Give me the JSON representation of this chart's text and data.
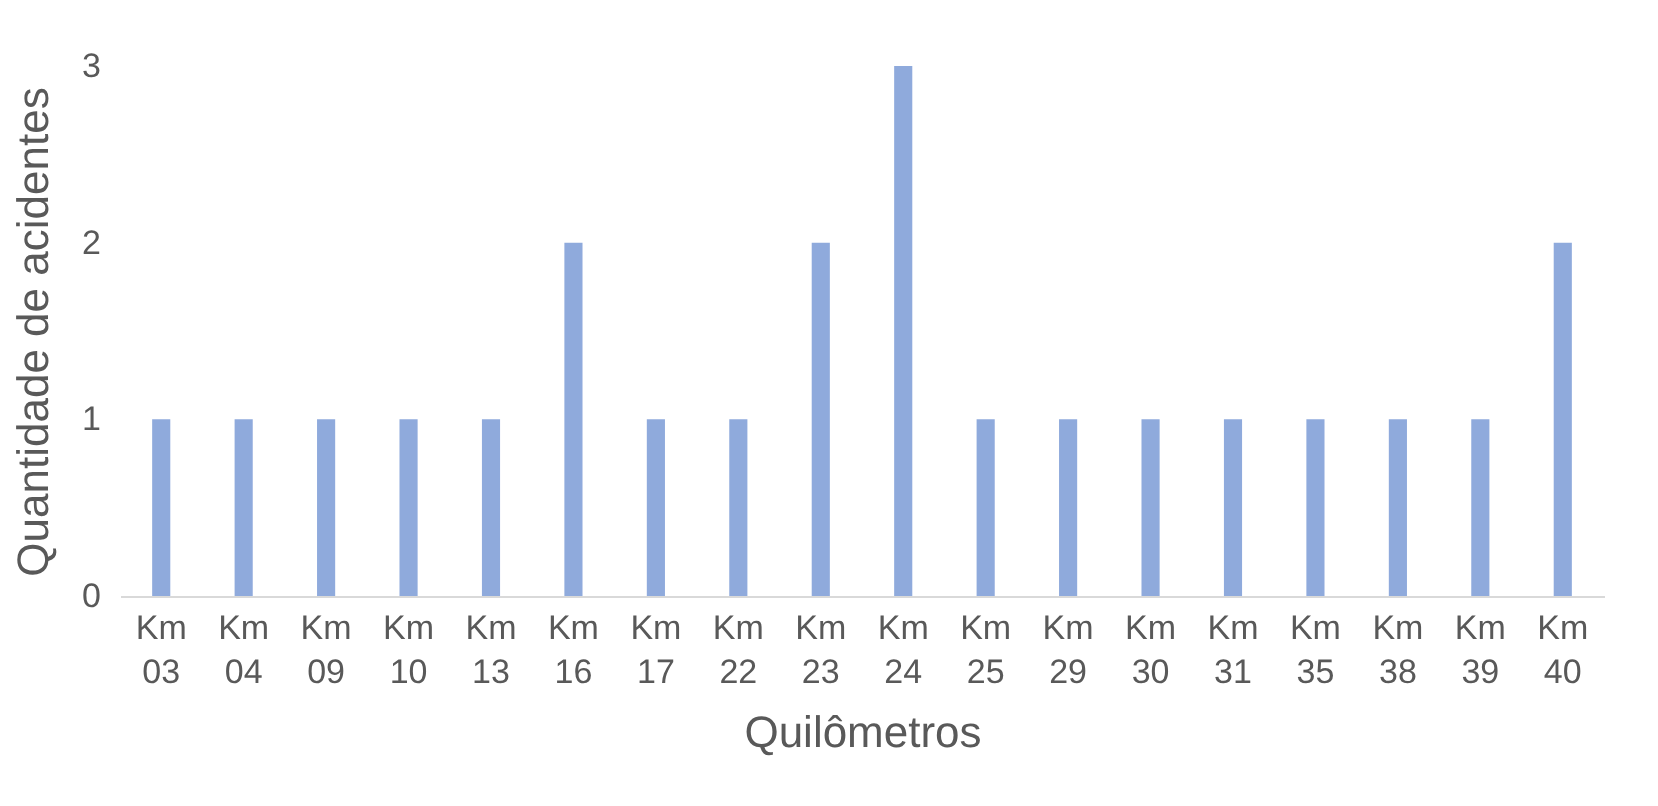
{
  "chart_data": {
    "type": "bar",
    "xlabel": "Quilômetros",
    "ylabel": "Quantidade de acidentes",
    "categories": [
      "Km 03",
      "Km 04",
      "Km 09",
      "Km 10",
      "Km 13",
      "Km 16",
      "Km 17",
      "Km 22",
      "Km 23",
      "Km 24",
      "Km 25",
      "Km 29",
      "Km 30",
      "Km 31",
      "Km 35",
      "Km 38",
      "Km 39",
      "Km 40"
    ],
    "values": [
      1,
      1,
      1,
      1,
      1,
      2,
      1,
      1,
      2,
      3,
      1,
      1,
      1,
      1,
      1,
      1,
      1,
      2
    ],
    "color": "#8faadc",
    "ylim": [
      0,
      3
    ],
    "yticks": [
      0,
      1,
      2,
      3
    ],
    "grid": false
  }
}
